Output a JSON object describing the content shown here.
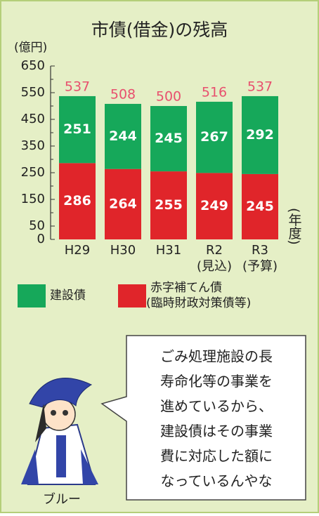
{
  "chart_data": {
    "type": "stacked-bar",
    "title": "市債(借金)の残高",
    "y_label": "(億円)",
    "x_label": "(年度)",
    "categories": [
      "H29",
      "H30",
      "H31",
      "R2",
      "R3"
    ],
    "category_notes": [
      null,
      null,
      null,
      "(見込)",
      "(予算)"
    ],
    "series": [
      {
        "name": "赤字補てん債",
        "name_note": "(臨時財政対策債等)",
        "color": "#e0252a",
        "values": [
          286,
          264,
          255,
          249,
          245
        ]
      },
      {
        "name": "建設債",
        "color": "#16a85a",
        "values": [
          251,
          244,
          245,
          267,
          292
        ]
      }
    ],
    "totals": [
      537,
      508,
      500,
      516,
      537
    ],
    "total_color": "#e8506e",
    "ylim": [
      0,
      650
    ],
    "yticks": [
      0,
      50,
      150,
      250,
      350,
      450,
      550,
      650
    ],
    "yminor_ticks": [
      100,
      200,
      300,
      400,
      500,
      600
    ]
  },
  "speech": [
    "ごみ処理施設の長",
    "寿命化等の事業を",
    "進めているから、",
    "建設債はその事業",
    "費に対応した額に",
    "なっているんやな"
  ],
  "character_name": "ブルー"
}
